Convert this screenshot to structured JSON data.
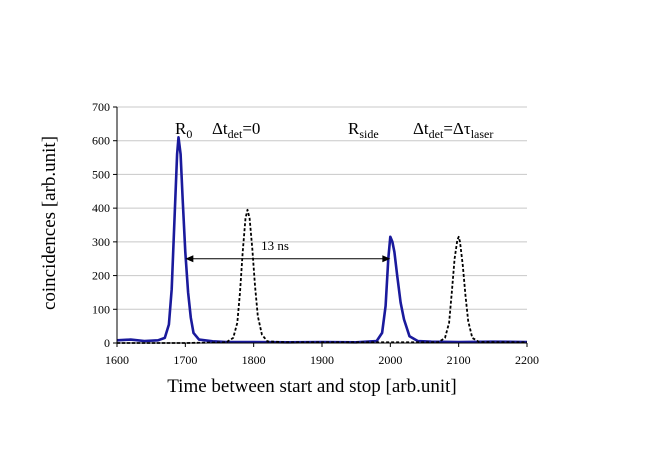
{
  "chart_data": {
    "type": "line",
    "title": "",
    "xlabel": "Time between start and stop [arb.unit]",
    "ylabel": "coincidences [arb.unit]",
    "xlim": [
      1600,
      2200
    ],
    "ylim": [
      0,
      700
    ],
    "x_ticks": [
      "1600",
      "1700",
      "1800",
      "1900",
      "2000",
      "2100",
      "2200"
    ],
    "y_ticks": [
      "0",
      "100",
      "200",
      "300",
      "400",
      "500",
      "600",
      "700"
    ],
    "grid": "horizontal",
    "series": [
      {
        "style": "solid",
        "color": "#1a1a9c",
        "x": [
          1600,
          1620,
          1640,
          1660,
          1670,
          1676,
          1680,
          1684,
          1688,
          1690,
          1693,
          1696,
          1700,
          1704,
          1708,
          1712,
          1720,
          1740,
          1760,
          1800,
          1850,
          1900,
          1950,
          1980,
          1988,
          1993,
          1997,
          2000,
          2003,
          2006,
          2010,
          2015,
          2020,
          2028,
          2040,
          2060,
          2100,
          2150,
          2200
        ],
        "y": [
          8,
          10,
          6,
          8,
          15,
          55,
          160,
          360,
          560,
          610,
          560,
          430,
          270,
          150,
          75,
          30,
          10,
          5,
          3,
          3,
          2,
          3,
          2,
          6,
          30,
          110,
          250,
          315,
          300,
          270,
          200,
          120,
          70,
          20,
          6,
          4,
          3,
          4,
          3
        ]
      },
      {
        "style": "dashed",
        "color": "#000000",
        "x": [
          1600,
          1700,
          1760,
          1770,
          1776,
          1780,
          1784,
          1788,
          1791,
          1794,
          1798,
          1802,
          1806,
          1812,
          1820,
          1850,
          1900,
          2000,
          2070,
          2080,
          2086,
          2090,
          2094,
          2098,
          2100,
          2102,
          2106,
          2110,
          2114,
          2120,
          2130,
          2200
        ],
        "y": [
          0,
          0,
          2,
          15,
          60,
          150,
          270,
          370,
          395,
          370,
          280,
          170,
          80,
          25,
          5,
          2,
          2,
          2,
          2,
          15,
          60,
          150,
          250,
          305,
          315,
          300,
          230,
          140,
          65,
          15,
          3,
          2
        ]
      }
    ],
    "annotations": {
      "r0_main": "R",
      "r0_sub": "0",
      "dt1_main": "Δt",
      "dt1_sub": "det",
      "dt1_rest": "=0",
      "rside_main": "R",
      "rside_sub": "side",
      "dt2_main": "Δt",
      "dt2_sub": "det",
      "dt2_eq": "=Δτ",
      "dt2_sub2": "laser",
      "arrow_label": "13 ns",
      "arrow_from": 1700,
      "arrow_to": 2000,
      "arrow_y": 250
    }
  }
}
